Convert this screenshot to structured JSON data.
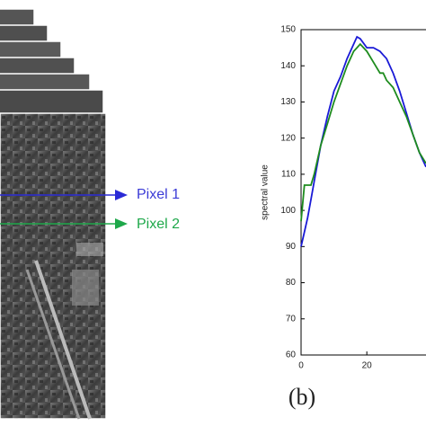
{
  "chart_data": {
    "type": "line",
    "ylabel": "spectral value",
    "caption": "(b)",
    "annotations": [
      "Pixel 1",
      "Pixel 2"
    ],
    "x": [
      0,
      1,
      2,
      3,
      4,
      6,
      8,
      10,
      12,
      14,
      16,
      17,
      18,
      20,
      22,
      24,
      25,
      26,
      28,
      30,
      32,
      34,
      36,
      38
    ],
    "series": [
      {
        "color": "#1a1ad6",
        "values": [
          90,
          94,
          98,
          103,
          108,
          118,
          126,
          133,
          137,
          142,
          146,
          148,
          147.5,
          145,
          145,
          144,
          143,
          142,
          138,
          133,
          127,
          121,
          116,
          112
        ]
      },
      {
        "color": "#1e8c1e",
        "values": [
          97,
          107,
          107,
          107,
          110,
          118,
          124,
          130,
          135,
          140,
          144,
          145,
          146,
          144,
          141,
          138,
          138,
          136,
          134,
          130,
          126,
          121,
          116,
          113
        ]
      }
    ],
    "xlim": [
      0,
      38
    ],
    "xticks": [
      0,
      20
    ],
    "ylim": [
      60,
      150
    ],
    "yticks": [
      60,
      70,
      80,
      90,
      100,
      110,
      120,
      130,
      140,
      150
    ]
  }
}
